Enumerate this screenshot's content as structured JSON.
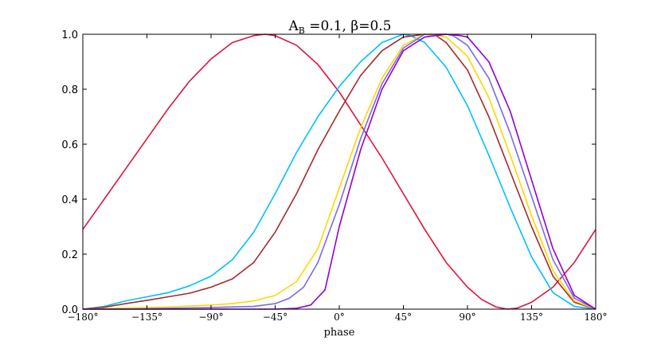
{
  "chart_data": {
    "type": "line",
    "title": "A_B =0.1,  β=0.5",
    "title_main": "A",
    "title_sub": "B",
    "title_rest": " =0.1,  β=0.5",
    "xlabel": "phase",
    "ylabel": "",
    "xlim": [
      -180,
      180
    ],
    "ylim": [
      0,
      1.0
    ],
    "x_ticks": [
      -180,
      -135,
      -90,
      -45,
      0,
      45,
      90,
      135,
      180
    ],
    "x_tick_labels": [
      "−180°",
      "−135°",
      "−90°",
      "−45°",
      "0°",
      "45°",
      "90°",
      "135°",
      "180°"
    ],
    "y_ticks": [
      0,
      0.2,
      0.4,
      0.6,
      0.8,
      1.0
    ],
    "y_tick_labels": [
      "0.0",
      "0.2",
      "0.4",
      "0.6",
      "0.8",
      "1.0"
    ],
    "grid": false,
    "legend": "none",
    "series": [
      {
        "color": "#dc143c",
        "x": [
          -180,
          -165,
          -150,
          -135,
          -120,
          -105,
          -90,
          -75,
          -60,
          -52,
          -45,
          -30,
          -15,
          0,
          15,
          30,
          45,
          60,
          75,
          90,
          100,
          110,
          118,
          125,
          135,
          150,
          165,
          180
        ],
        "y": [
          0.29,
          0.4,
          0.51,
          0.62,
          0.73,
          0.83,
          0.91,
          0.97,
          0.995,
          1.0,
          0.995,
          0.96,
          0.89,
          0.79,
          0.67,
          0.55,
          0.42,
          0.29,
          0.17,
          0.08,
          0.035,
          0.008,
          0.0,
          0.004,
          0.025,
          0.08,
          0.17,
          0.29
        ]
      },
      {
        "color": "#00bfff",
        "x": [
          -180,
          -165,
          -150,
          -135,
          -120,
          -105,
          -90,
          -75,
          -60,
          -45,
          -30,
          -15,
          0,
          15,
          30,
          45,
          50,
          60,
          75,
          90,
          105,
          120,
          135,
          150,
          165,
          180
        ],
        "y": [
          0.0,
          0.01,
          0.03,
          0.045,
          0.06,
          0.085,
          0.12,
          0.18,
          0.28,
          0.42,
          0.57,
          0.7,
          0.81,
          0.9,
          0.97,
          1.0,
          0.995,
          0.97,
          0.88,
          0.74,
          0.56,
          0.37,
          0.19,
          0.06,
          0.01,
          0.0
        ]
      },
      {
        "color": "#a52a2a",
        "x": [
          -180,
          -165,
          -150,
          -135,
          -120,
          -105,
          -90,
          -75,
          -60,
          -45,
          -30,
          -15,
          0,
          15,
          30,
          45,
          60,
          68,
          75,
          90,
          105,
          120,
          135,
          150,
          165,
          180
        ],
        "y": [
          0.0,
          0.007,
          0.02,
          0.032,
          0.045,
          0.058,
          0.08,
          0.11,
          0.17,
          0.28,
          0.42,
          0.58,
          0.72,
          0.85,
          0.94,
          0.99,
          1.0,
          0.995,
          0.97,
          0.87,
          0.7,
          0.5,
          0.3,
          0.12,
          0.025,
          0.0
        ]
      },
      {
        "color": "#ffd700",
        "x": [
          -180,
          -150,
          -120,
          -90,
          -75,
          -60,
          -45,
          -30,
          -15,
          0,
          15,
          30,
          45,
          60,
          70,
          75,
          90,
          105,
          120,
          135,
          150,
          165,
          180
        ],
        "y": [
          0.0,
          0.004,
          0.008,
          0.015,
          0.02,
          0.03,
          0.05,
          0.1,
          0.22,
          0.44,
          0.66,
          0.84,
          0.96,
          1.0,
          0.995,
          0.99,
          0.92,
          0.77,
          0.56,
          0.34,
          0.14,
          0.03,
          0.0
        ]
      },
      {
        "color": "#7b68ee",
        "x": [
          -180,
          -150,
          -120,
          -90,
          -60,
          -45,
          -35,
          -25,
          -15,
          0,
          15,
          30,
          45,
          60,
          75,
          80,
          90,
          105,
          120,
          135,
          150,
          165,
          180
        ],
        "y": [
          0.0,
          0.0,
          0.003,
          0.006,
          0.01,
          0.02,
          0.04,
          0.08,
          0.17,
          0.38,
          0.62,
          0.82,
          0.95,
          1.0,
          1.0,
          0.995,
          0.96,
          0.84,
          0.64,
          0.41,
          0.18,
          0.04,
          0.0
        ]
      },
      {
        "color": "#9400d3",
        "x": [
          -180,
          -150,
          -120,
          -90,
          -60,
          -45,
          -30,
          -20,
          -10,
          0,
          15,
          30,
          45,
          60,
          75,
          85,
          90,
          105,
          120,
          135,
          150,
          165,
          180
        ],
        "y": [
          0.0,
          0.0,
          0.0,
          0.0,
          0.0,
          0.0,
          0.003,
          0.015,
          0.07,
          0.3,
          0.58,
          0.8,
          0.94,
          0.99,
          1.0,
          0.995,
          0.99,
          0.9,
          0.72,
          0.47,
          0.22,
          0.05,
          0.0
        ]
      }
    ]
  }
}
